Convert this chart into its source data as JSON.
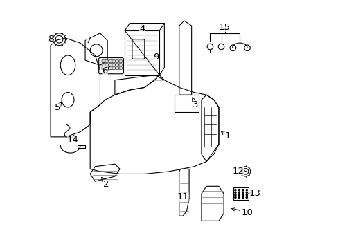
{
  "title": "",
  "bg_color": "#ffffff",
  "line_color": "#000000",
  "fig_width": 4.89,
  "fig_height": 3.6,
  "dpi": 100,
  "font_size": 9.5
}
